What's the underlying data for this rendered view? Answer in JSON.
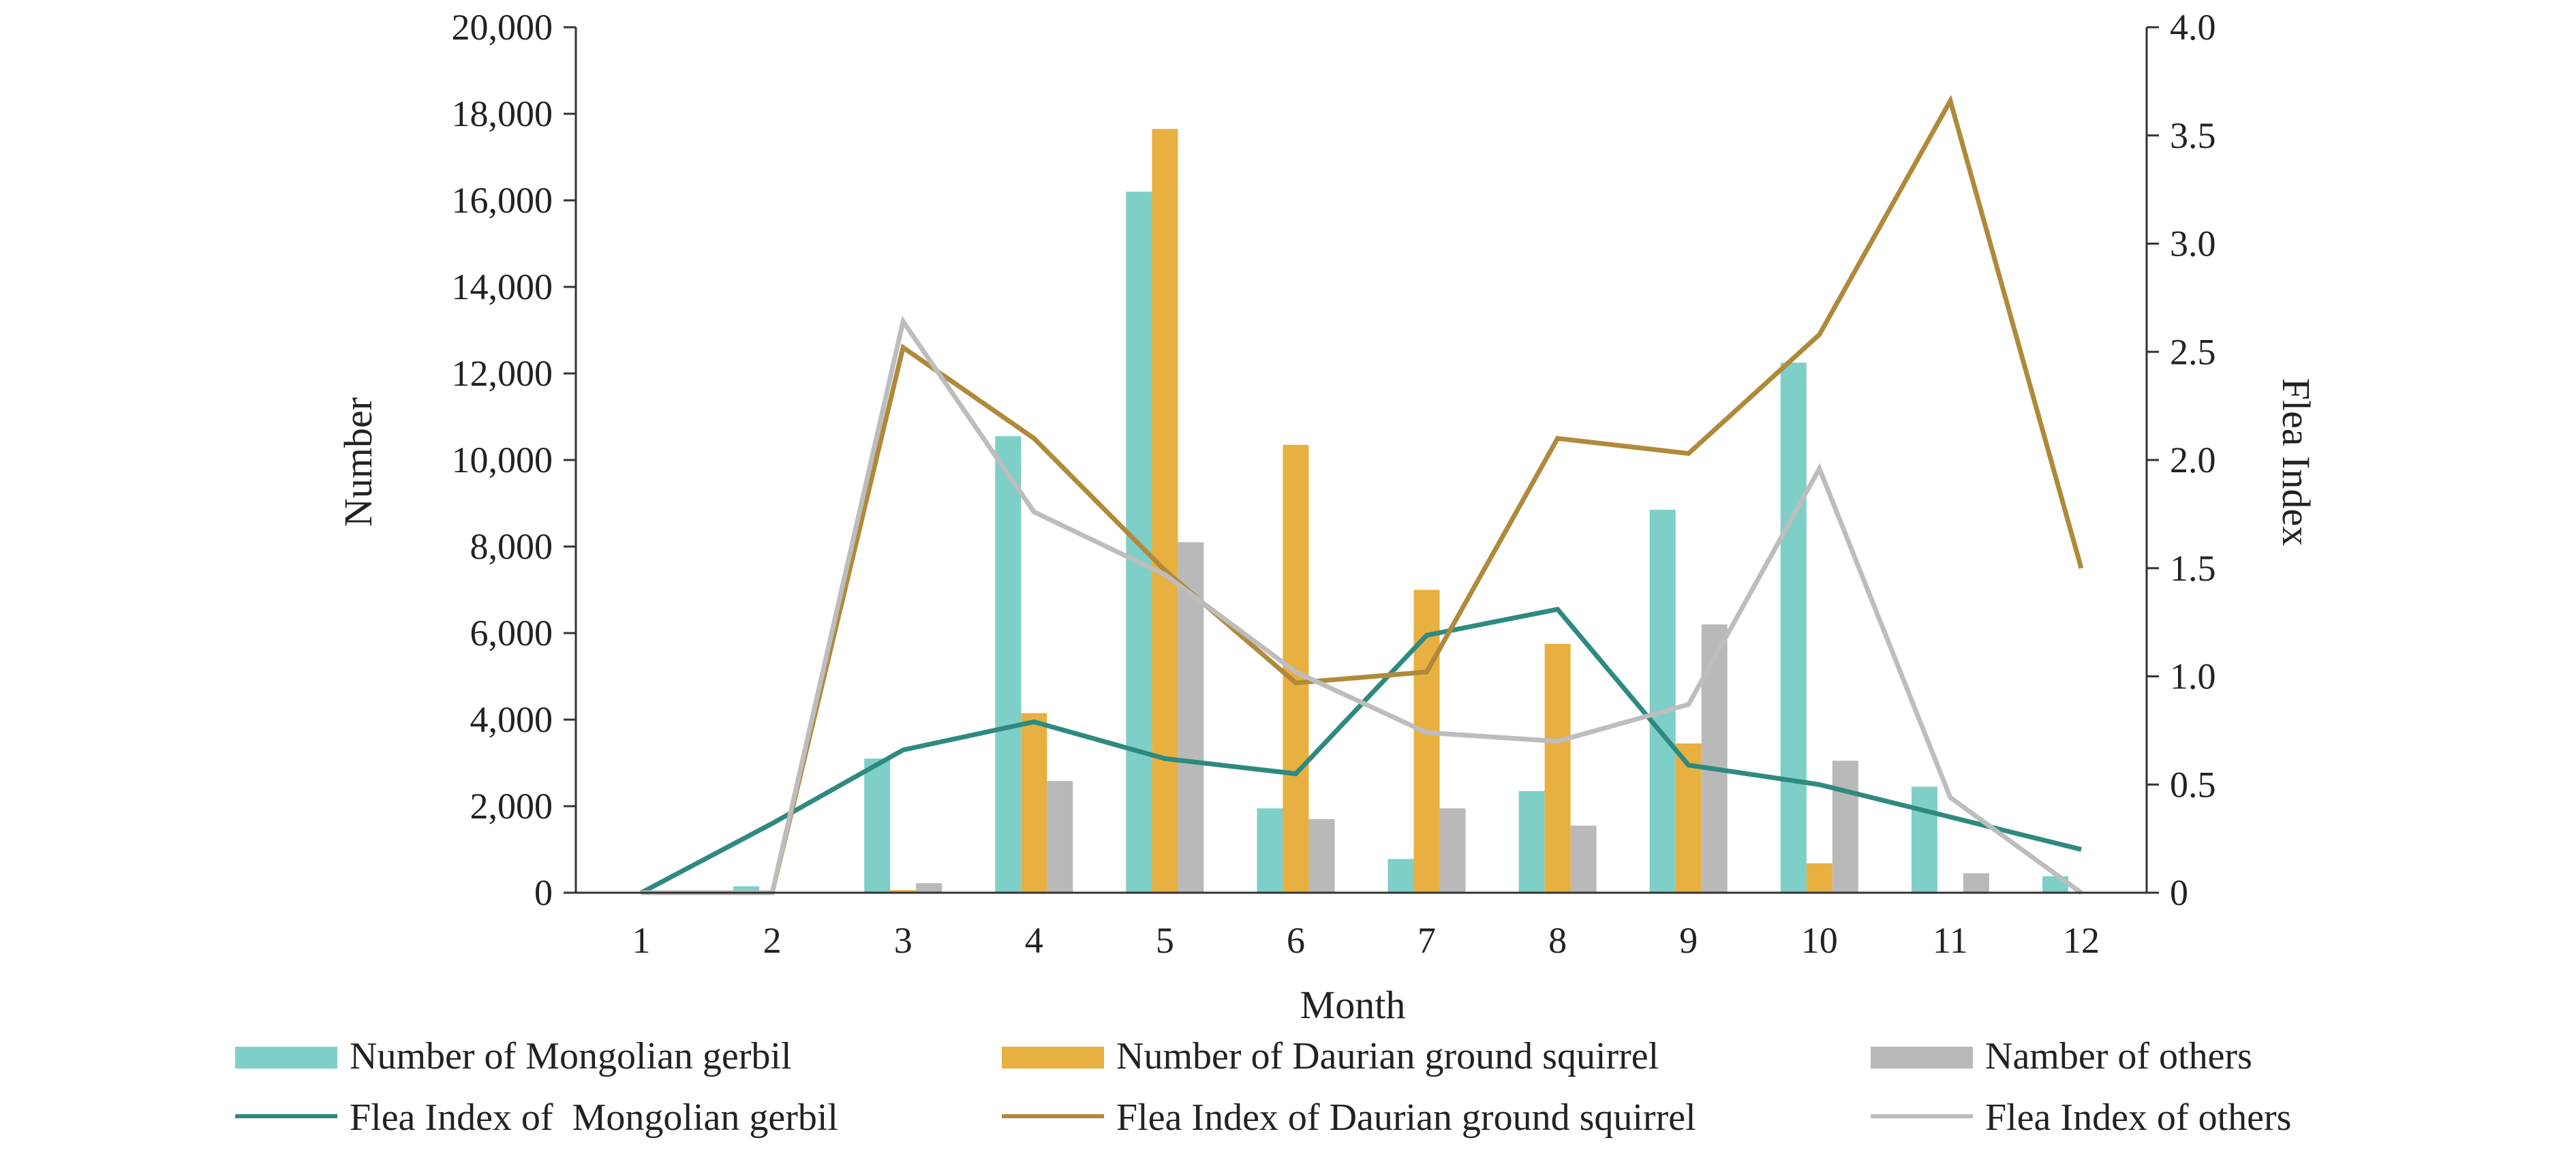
{
  "chart_data": {
    "type": "bar",
    "xlabel": "Month",
    "ylabel": "Number",
    "y2label": "Flea Index",
    "categories": [
      "1",
      "2",
      "3",
      "4",
      "5",
      "6",
      "7",
      "8",
      "9",
      "10",
      "11",
      "12"
    ],
    "ylim": [
      0,
      20000
    ],
    "y2lim": [
      0,
      4.0
    ],
    "yticks": [
      "0",
      "2,000",
      "4,000",
      "6,000",
      "8,000",
      "10,000",
      "12,000",
      "14,000",
      "16,000",
      "18,000",
      "20,000"
    ],
    "y2ticks": [
      "0",
      "0.5",
      "1.0",
      "1.5",
      "2.0",
      "2.5",
      "3.0",
      "3.5",
      "4.0"
    ],
    "grid": false,
    "legend_position": "bottom",
    "bar_series": [
      {
        "name": "Number of Mongolian gerbil",
        "color": "#7ecfc8",
        "values": [
          0,
          150,
          3100,
          10550,
          16200,
          1950,
          780,
          2350,
          8850,
          12250,
          2450,
          380
        ]
      },
      {
        "name": "Number of Daurian ground squirrel",
        "color": "#e8b040",
        "values": [
          0,
          0,
          60,
          4150,
          17650,
          10350,
          7000,
          5750,
          3450,
          680,
          0,
          0
        ]
      },
      {
        "name": "Namber of others",
        "color": "#b9b9b9",
        "values": [
          0,
          0,
          220,
          2580,
          8100,
          1700,
          1950,
          1550,
          6200,
          3050,
          450,
          0
        ]
      }
    ],
    "line_series": [
      {
        "name": "Flea Index of  Mongolian gerbil",
        "color": "#2e8a80",
        "axis": "right",
        "values": [
          0,
          0.32,
          0.66,
          0.79,
          0.62,
          0.55,
          1.19,
          1.31,
          0.59,
          0.5,
          0.35,
          0.2
        ]
      },
      {
        "name": "Flea Index of Daurian ground squirrel",
        "color": "#b08a3a",
        "axis": "right",
        "values": [
          0,
          0,
          2.52,
          2.1,
          1.49,
          0.97,
          1.02,
          2.1,
          2.03,
          2.58,
          3.66,
          1.5
        ]
      },
      {
        "name": "Flea Index of others",
        "color": "#bdbdbd",
        "axis": "right",
        "values": [
          0,
          0,
          2.64,
          1.76,
          1.47,
          1.02,
          0.74,
          0.7,
          0.87,
          1.96,
          0.44,
          0
        ]
      }
    ]
  }
}
